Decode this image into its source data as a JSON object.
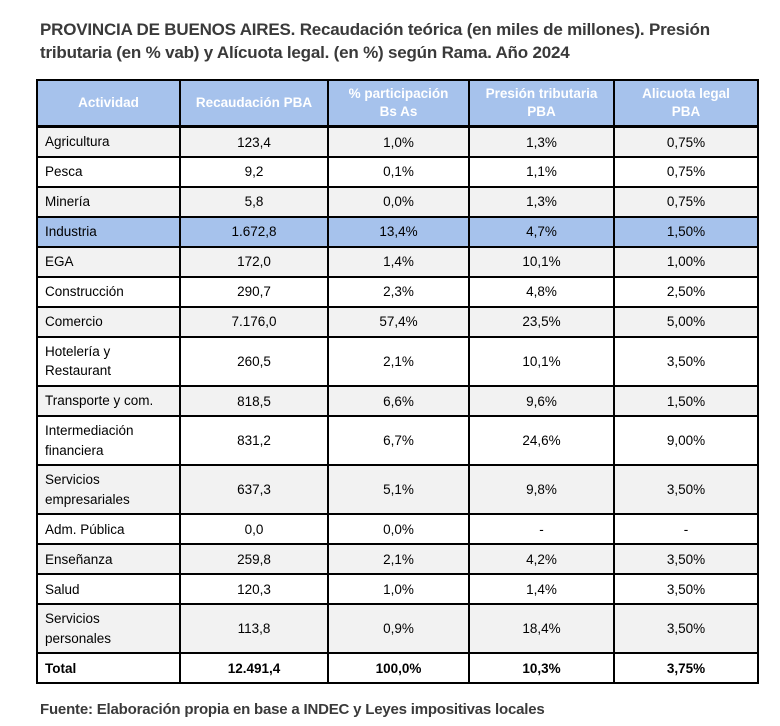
{
  "title": "PROVINCIA DE BUENOS AIRES. Recaudación teórica (en miles de millones). Presión\ntributaria (en % vab) y Alícuota legal. (en %) según Rama. Año 2024",
  "source": "Fuente: Elaboración propia en base a INDEC y Leyes impositivas locales",
  "colors": {
    "header_bg": "#a6c2ec",
    "highlight_bg": "#a6c2ec",
    "stripe_bg": "#f2f2f2",
    "border": "#000000",
    "header_text": "#ffffff",
    "title_text": "#3a3a3a"
  },
  "table": {
    "columns": [
      "Actividad",
      "Recaudación PBA",
      "% participación\nBs As",
      "Presión tributaria\nPBA",
      "Alicuota legal\nPBA"
    ],
    "rows": [
      {
        "cells": [
          "Agricultura",
          "123,4",
          "1,0%",
          "1,3%",
          "0,75%"
        ],
        "stripe": true,
        "highlight": false,
        "total": false
      },
      {
        "cells": [
          "Pesca",
          "9,2",
          "0,1%",
          "1,1%",
          "0,75%"
        ],
        "stripe": false,
        "highlight": false,
        "total": false
      },
      {
        "cells": [
          "Minería",
          "5,8",
          "0,0%",
          "1,3%",
          "0,75%"
        ],
        "stripe": true,
        "highlight": false,
        "total": false
      },
      {
        "cells": [
          "Industria",
          "1.672,8",
          "13,4%",
          "4,7%",
          "1,50%"
        ],
        "stripe": false,
        "highlight": true,
        "total": false
      },
      {
        "cells": [
          "EGA",
          "172,0",
          "1,4%",
          "10,1%",
          "1,00%"
        ],
        "stripe": true,
        "highlight": false,
        "total": false
      },
      {
        "cells": [
          "Construcción",
          "290,7",
          "2,3%",
          "4,8%",
          "2,50%"
        ],
        "stripe": false,
        "highlight": false,
        "total": false
      },
      {
        "cells": [
          "Comercio",
          "7.176,0",
          "57,4%",
          "23,5%",
          "5,00%"
        ],
        "stripe": true,
        "highlight": false,
        "total": false
      },
      {
        "cells": [
          "Hotelería y\nRestaurant",
          "260,5",
          "2,1%",
          "10,1%",
          "3,50%"
        ],
        "stripe": false,
        "highlight": false,
        "total": false
      },
      {
        "cells": [
          "Transporte y com.",
          "818,5",
          "6,6%",
          "9,6%",
          "1,50%"
        ],
        "stripe": true,
        "highlight": false,
        "total": false
      },
      {
        "cells": [
          "Intermediación\nfinanciera",
          "831,2",
          "6,7%",
          "24,6%",
          "9,00%"
        ],
        "stripe": false,
        "highlight": false,
        "total": false
      },
      {
        "cells": [
          "Servicios\nempresariales",
          "637,3",
          "5,1%",
          "9,8%",
          "3,50%"
        ],
        "stripe": true,
        "highlight": false,
        "total": false
      },
      {
        "cells": [
          "Adm. Pública",
          "0,0",
          "0,0%",
          "-",
          "-"
        ],
        "stripe": false,
        "highlight": false,
        "total": false
      },
      {
        "cells": [
          "Enseñanza",
          "259,8",
          "2,1%",
          "4,2%",
          "3,50%"
        ],
        "stripe": true,
        "highlight": false,
        "total": false
      },
      {
        "cells": [
          "Salud",
          "120,3",
          "1,0%",
          "1,4%",
          "3,50%"
        ],
        "stripe": false,
        "highlight": false,
        "total": false
      },
      {
        "cells": [
          "Servicios\npersonales",
          "113,8",
          "0,9%",
          "18,4%",
          "3,50%"
        ],
        "stripe": true,
        "highlight": false,
        "total": false
      },
      {
        "cells": [
          "Total",
          "12.491,4",
          "100,0%",
          "10,3%",
          "3,75%"
        ],
        "stripe": false,
        "highlight": false,
        "total": true
      }
    ]
  }
}
